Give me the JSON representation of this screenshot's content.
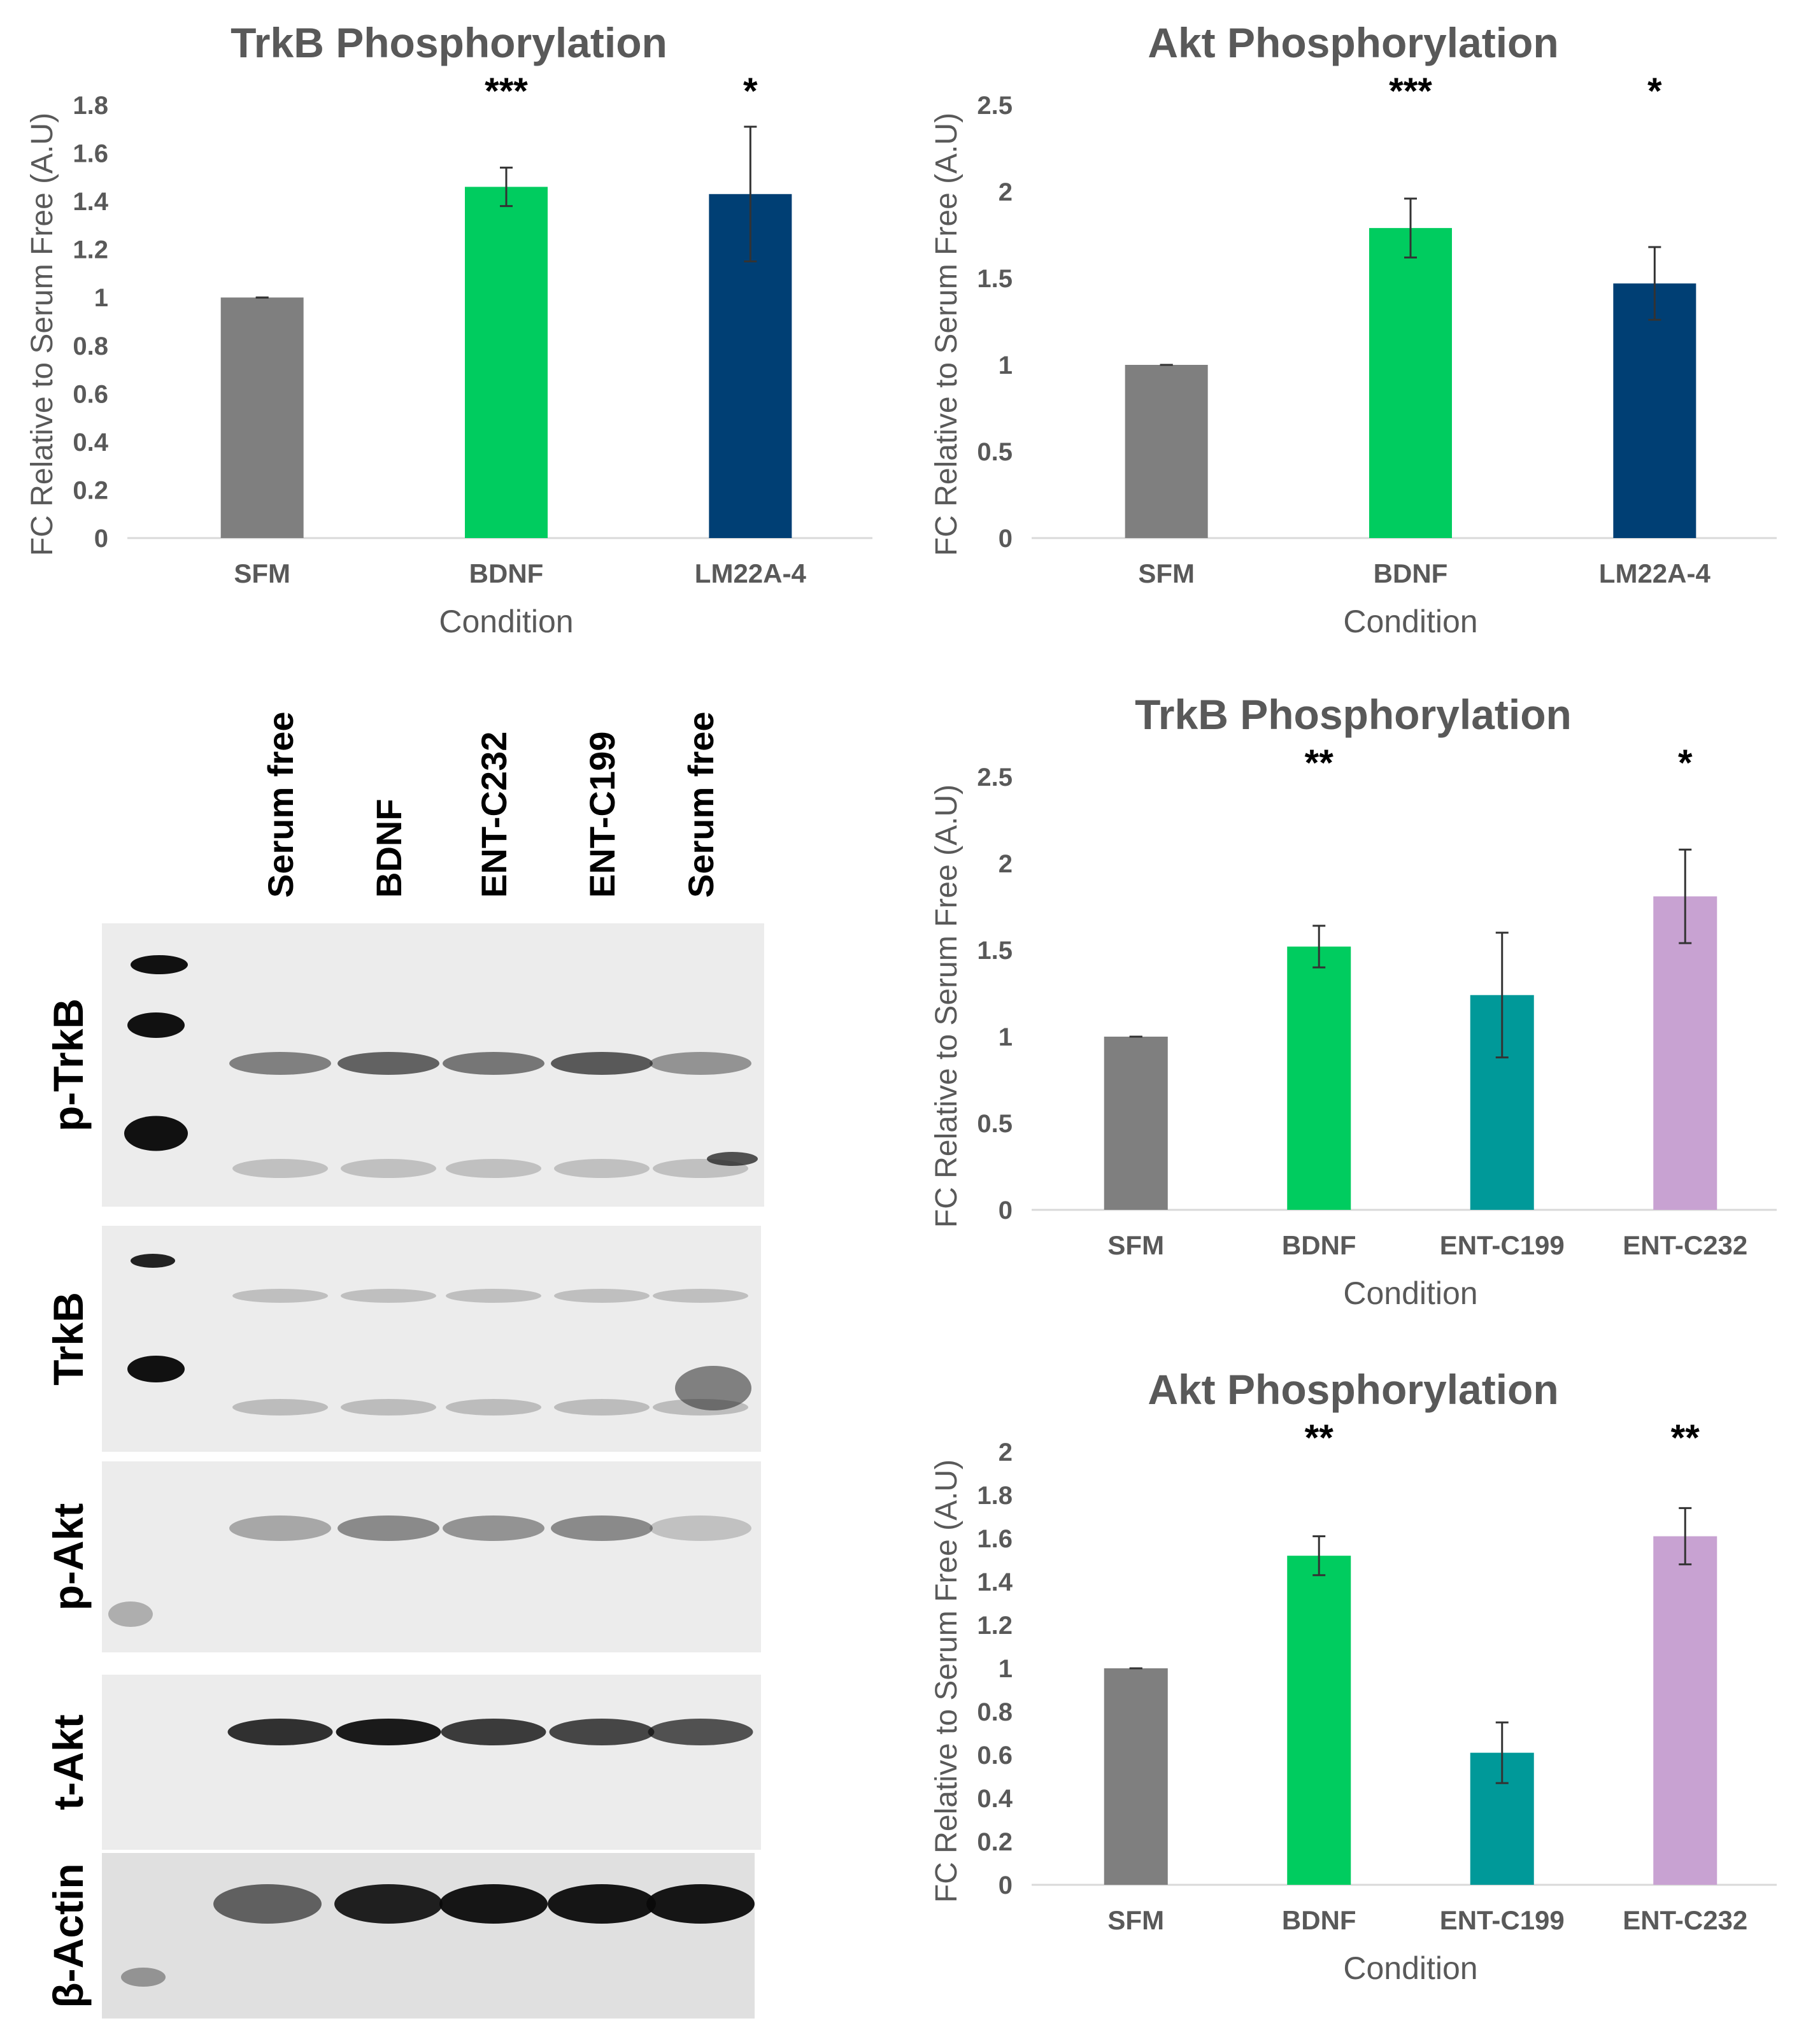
{
  "colors": {
    "SFM": "#7f7f7f",
    "BDNF": "#00cc5f",
    "LM22A-4": "#003f74",
    "ENT-C199": "#009999",
    "ENT-C232": "#c8a2d2",
    "axis_text": "#595959",
    "error_bar": "#333333"
  },
  "chart_data": [
    {
      "type": "bar",
      "title": "TrkB Phosphorylation",
      "xlabel": "Condition",
      "ylabel": "FC Relative to Serum Free (A.U)",
      "categories": [
        "SFM",
        "BDNF",
        "LM22A-4"
      ],
      "values": [
        1.0,
        1.46,
        1.43
      ],
      "errors": [
        0.0,
        0.08,
        0.28
      ],
      "significance": [
        "",
        "***",
        "*"
      ],
      "ylim": [
        0,
        1.8
      ],
      "yticks": [
        "0",
        "0.2",
        "0.4",
        "0.6",
        "0.8",
        "1",
        "1.2",
        "1.4",
        "1.6",
        "1.8"
      ],
      "grid": false
    },
    {
      "type": "bar",
      "title": "Akt Phosphorylation",
      "xlabel": "Condition",
      "ylabel": "FC Relative to Serum Free (A.U)",
      "categories": [
        "SFM",
        "BDNF",
        "LM22A-4"
      ],
      "values": [
        1.0,
        1.79,
        1.47
      ],
      "errors": [
        0.0,
        0.17,
        0.21
      ],
      "significance": [
        "",
        "***",
        "*"
      ],
      "ylim": [
        0,
        2.5
      ],
      "yticks": [
        "0",
        "0.5",
        "1",
        "1.5",
        "2",
        "2.5"
      ],
      "grid": false
    },
    {
      "type": "bar",
      "title": "TrkB Phosphorylation",
      "xlabel": "Condition",
      "ylabel": "FC Relative to Serum Free (A.U)",
      "categories": [
        "SFM",
        "BDNF",
        "ENT-C199",
        "ENT-C232"
      ],
      "values": [
        1.0,
        1.52,
        1.24,
        1.81
      ],
      "errors": [
        0.0,
        0.12,
        0.36,
        0.27
      ],
      "significance": [
        "",
        "**",
        "",
        "*"
      ],
      "ylim": [
        0,
        2.5
      ],
      "yticks": [
        "0",
        "0.5",
        "1",
        "1.5",
        "2",
        "2.5"
      ],
      "grid": false
    },
    {
      "type": "bar",
      "title": "Akt Phosphorylation",
      "xlabel": "Condition",
      "ylabel": "FC Relative to Serum Free (A.U)",
      "categories": [
        "SFM",
        "BDNF",
        "ENT-C199",
        "ENT-C232"
      ],
      "values": [
        1.0,
        1.52,
        0.61,
        1.61
      ],
      "errors": [
        0.0,
        0.09,
        0.14,
        0.13
      ],
      "significance": [
        "",
        "**",
        "",
        "**"
      ],
      "ylim": [
        0,
        2.0
      ],
      "yticks": [
        "0",
        "0.2",
        "0.4",
        "0.6",
        "0.8",
        "1",
        "1.2",
        "1.4",
        "1.6",
        "1.8",
        "2"
      ],
      "grid": false
    }
  ],
  "blot": {
    "lane_labels": [
      "Serum free",
      "BDNF",
      "ENT-C232",
      "ENT-C199",
      "Serum free"
    ],
    "row_labels": [
      "p-TrkB",
      "TrkB",
      "p-Akt",
      "t-Akt",
      "β-Actin"
    ]
  }
}
